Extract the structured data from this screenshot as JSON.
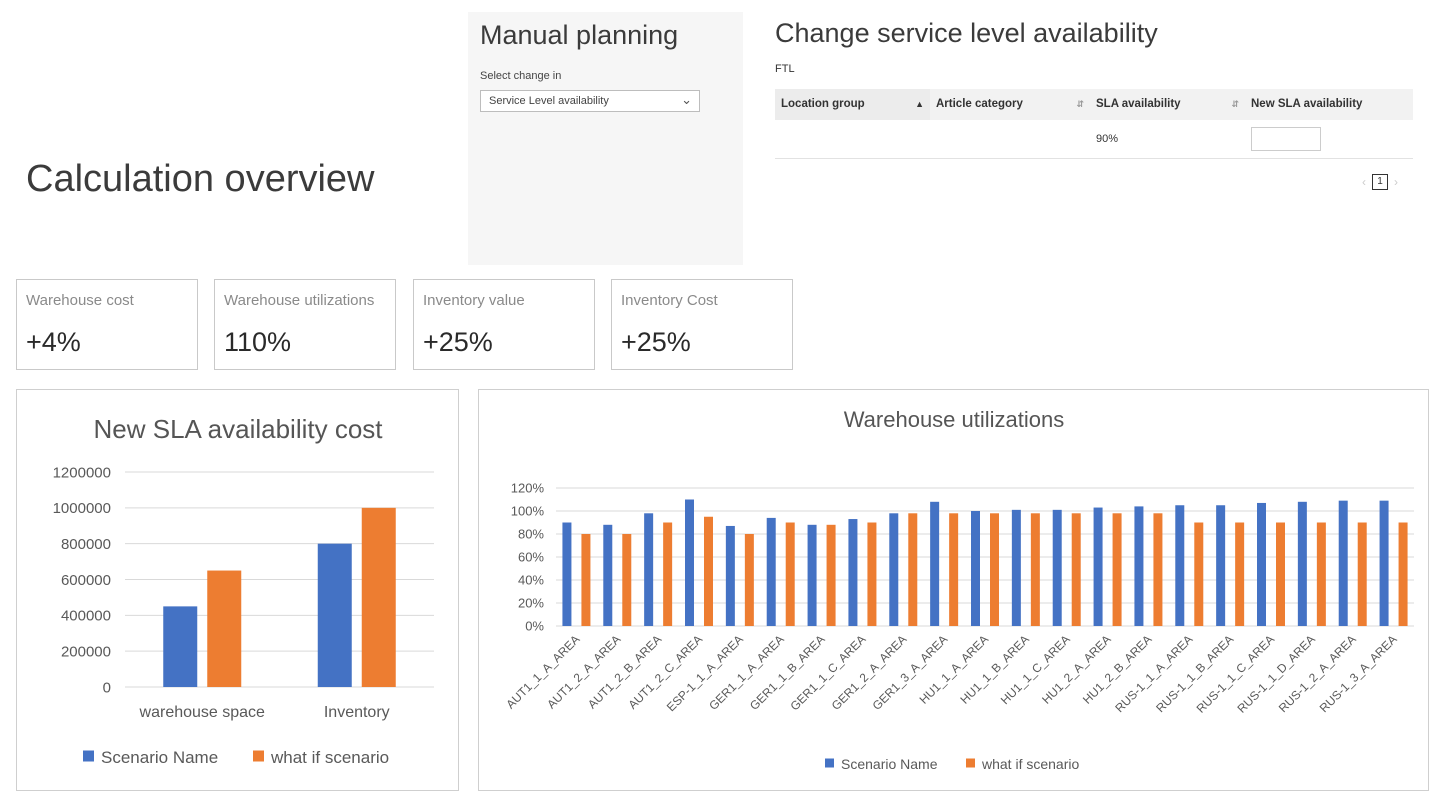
{
  "page": {
    "title": "Calculation overview"
  },
  "manual_planning": {
    "title": "Manual planning",
    "select_label": "Select change in",
    "select_value": "Service Level availability"
  },
  "sla": {
    "title": "Change service level availability",
    "subtitle": "FTL",
    "columns": [
      "Location group",
      "Article category",
      "SLA availability",
      "New SLA availability"
    ],
    "rows": [
      {
        "location_group": "",
        "article_category": "",
        "sla_availability": "90%",
        "new_sla_availability": ""
      }
    ],
    "page_number": "1"
  },
  "kpis": [
    {
      "label": "Warehouse cost",
      "value": "+4%"
    },
    {
      "label": "Warehouse utilizations",
      "value": "110%"
    },
    {
      "label": "Inventory value",
      "value": "+25%"
    },
    {
      "label": "Inventory Cost",
      "value": "+25%"
    }
  ],
  "colors": {
    "series_a": "#4472c4",
    "series_b": "#ed7d31"
  },
  "chart_data": [
    {
      "type": "bar",
      "title": "New SLA availability cost",
      "categories": [
        "warehouse space",
        "Inventory"
      ],
      "series": [
        {
          "name": "Scenario Name",
          "values": [
            450000,
            800000
          ]
        },
        {
          "name": "what if scenario",
          "values": [
            650000,
            1000000
          ]
        }
      ],
      "ylim": [
        0,
        1200000
      ],
      "yticks": [
        0,
        200000,
        400000,
        600000,
        800000,
        1000000,
        1200000
      ],
      "ytick_labels": [
        "0",
        "200000",
        "400000",
        "600000",
        "800000",
        "1000000",
        "1200000"
      ],
      "grid": true,
      "legend": "bottom"
    },
    {
      "type": "bar",
      "title": "Warehouse utilizations",
      "categories": [
        "AUT1_1_A_AREA",
        "AUT1_2_A_AREA",
        "AUT1_2_B_AREA",
        "AUT1_2_C_AREA",
        "ESP-1_1_A_AREA",
        "GER1_1_A_AREA",
        "GER1_1_B_AREA",
        "GER1_1_C_AREA",
        "GER1_2_A_AREA",
        "GER1_3_A_AREA",
        "HU1_1_A_AREA",
        "HU1_1_B_AREA",
        "HU1_1_C_AREA",
        "HU1_2_A_AREA",
        "HU1_2_B_AREA",
        "RUS-1_1_A_AREA",
        "RUS-1_1_B_AREA",
        "RUS-1_1_C_AREA",
        "RUS-1_1_D_AREA",
        "RUS-1_2_A_AREA",
        "RUS-1_3_A_AREA"
      ],
      "series": [
        {
          "name": "Scenario Name",
          "values": [
            90,
            88,
            98,
            110,
            87,
            94,
            88,
            93,
            98,
            108,
            100,
            101,
            101,
            103,
            104,
            105,
            105,
            107,
            108,
            109,
            109
          ]
        },
        {
          "name": "what if scenario",
          "values": [
            80,
            80,
            90,
            95,
            80,
            90,
            88,
            90,
            98,
            98,
            98,
            98,
            98,
            98,
            98,
            90,
            90,
            90,
            90,
            90,
            90
          ]
        }
      ],
      "ylim": [
        0,
        120
      ],
      "yticks": [
        0,
        20,
        40,
        60,
        80,
        100,
        120
      ],
      "ytick_labels": [
        "0%",
        "20%",
        "40%",
        "60%",
        "80%",
        "100%",
        "120%"
      ],
      "grid": true,
      "legend": "bottom"
    }
  ]
}
